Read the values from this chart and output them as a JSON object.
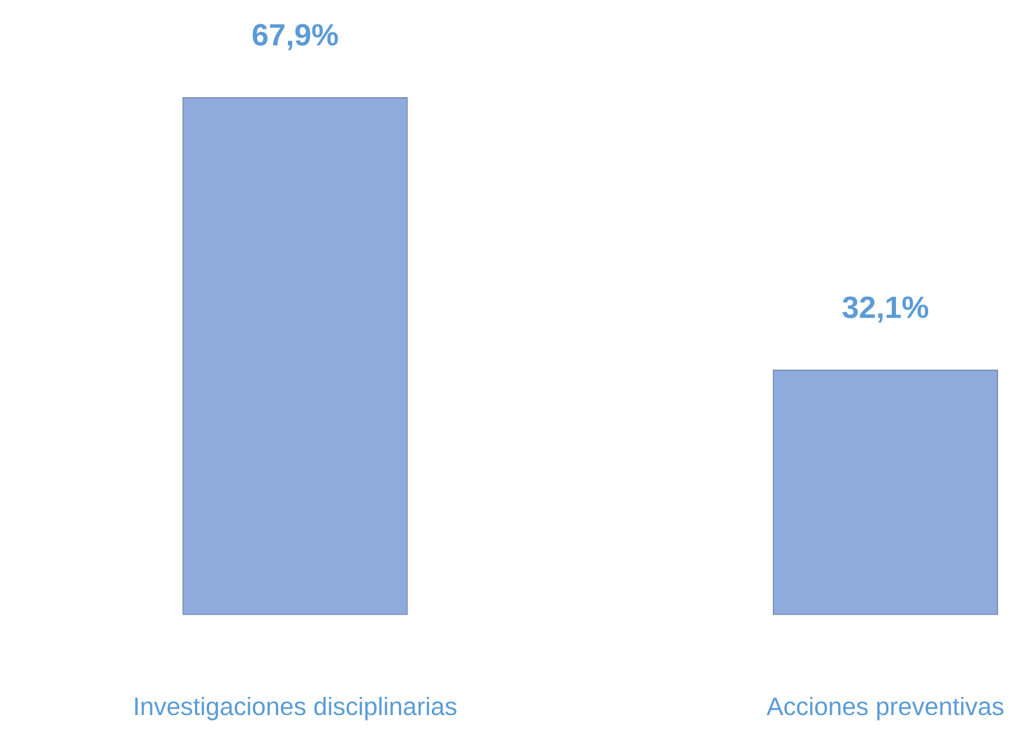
{
  "chart_data": {
    "type": "bar",
    "categories": [
      "Investigaciones disciplinarias",
      "Acciones preventivas"
    ],
    "values": [
      67.9,
      32.1
    ],
    "value_labels": [
      "67,9%",
      "32,1%"
    ],
    "color": "#8faadc"
  }
}
